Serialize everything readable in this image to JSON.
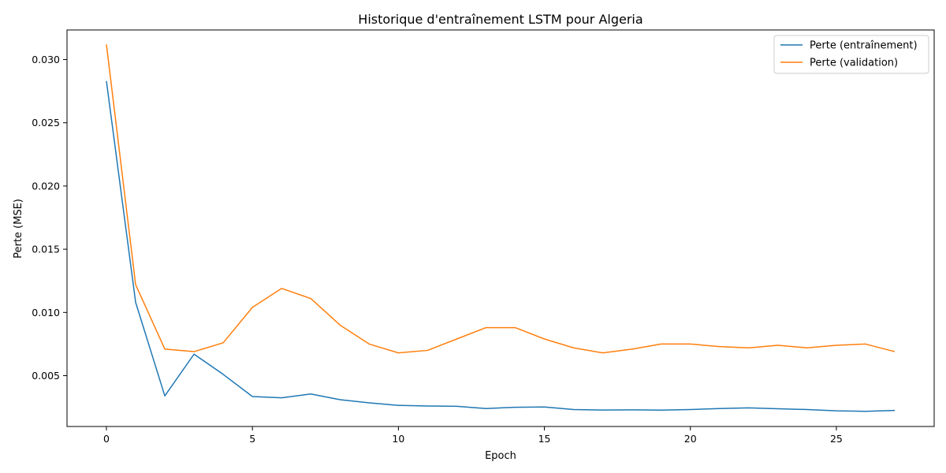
{
  "chart_data": {
    "type": "line",
    "title": "Historique d'entraînement LSTM pour Algeria",
    "xlabel": "Epoch",
    "ylabel": "Perte (MSE)",
    "xlim": [
      -1.35,
      28.35
    ],
    "ylim": [
      0.00098,
      0.03234
    ],
    "xticks": [
      0,
      5,
      10,
      15,
      20,
      25
    ],
    "xtick_labels": [
      "0",
      "5",
      "10",
      "15",
      "20",
      "25"
    ],
    "yticks": [
      0.005,
      0.01,
      0.015,
      0.02,
      0.025,
      0.03
    ],
    "ytick_labels": [
      "0.005",
      "0.010",
      "0.015",
      "0.020",
      "0.025",
      "0.030"
    ],
    "grid": false,
    "legend_position": "top-right",
    "x": [
      0,
      1,
      2,
      3,
      4,
      5,
      6,
      7,
      8,
      9,
      10,
      11,
      12,
      13,
      14,
      15,
      16,
      17,
      18,
      19,
      20,
      21,
      22,
      23,
      24,
      25,
      26,
      27
    ],
    "series": [
      {
        "name": "Perte (entraînement)",
        "color": "#1f77b4",
        "values": [
          0.0283,
          0.0108,
          0.0034,
          0.0067,
          0.0051,
          0.00335,
          0.00325,
          0.00355,
          0.0031,
          0.00285,
          0.00265,
          0.0026,
          0.00258,
          0.0024,
          0.0025,
          0.00252,
          0.00232,
          0.00228,
          0.0023,
          0.00227,
          0.00232,
          0.0024,
          0.00245,
          0.00238,
          0.00232,
          0.00222,
          0.00218,
          0.00225
        ]
      },
      {
        "name": "Perte (validation)",
        "color": "#ff7f0e",
        "values": [
          0.0312,
          0.0122,
          0.0071,
          0.0069,
          0.0076,
          0.0104,
          0.0119,
          0.0111,
          0.009,
          0.0075,
          0.0068,
          0.007,
          0.0079,
          0.0088,
          0.0088,
          0.0079,
          0.0072,
          0.0068,
          0.0071,
          0.0075,
          0.0075,
          0.0073,
          0.0072,
          0.0074,
          0.0072,
          0.0074,
          0.0075,
          0.0069
        ]
      }
    ]
  }
}
